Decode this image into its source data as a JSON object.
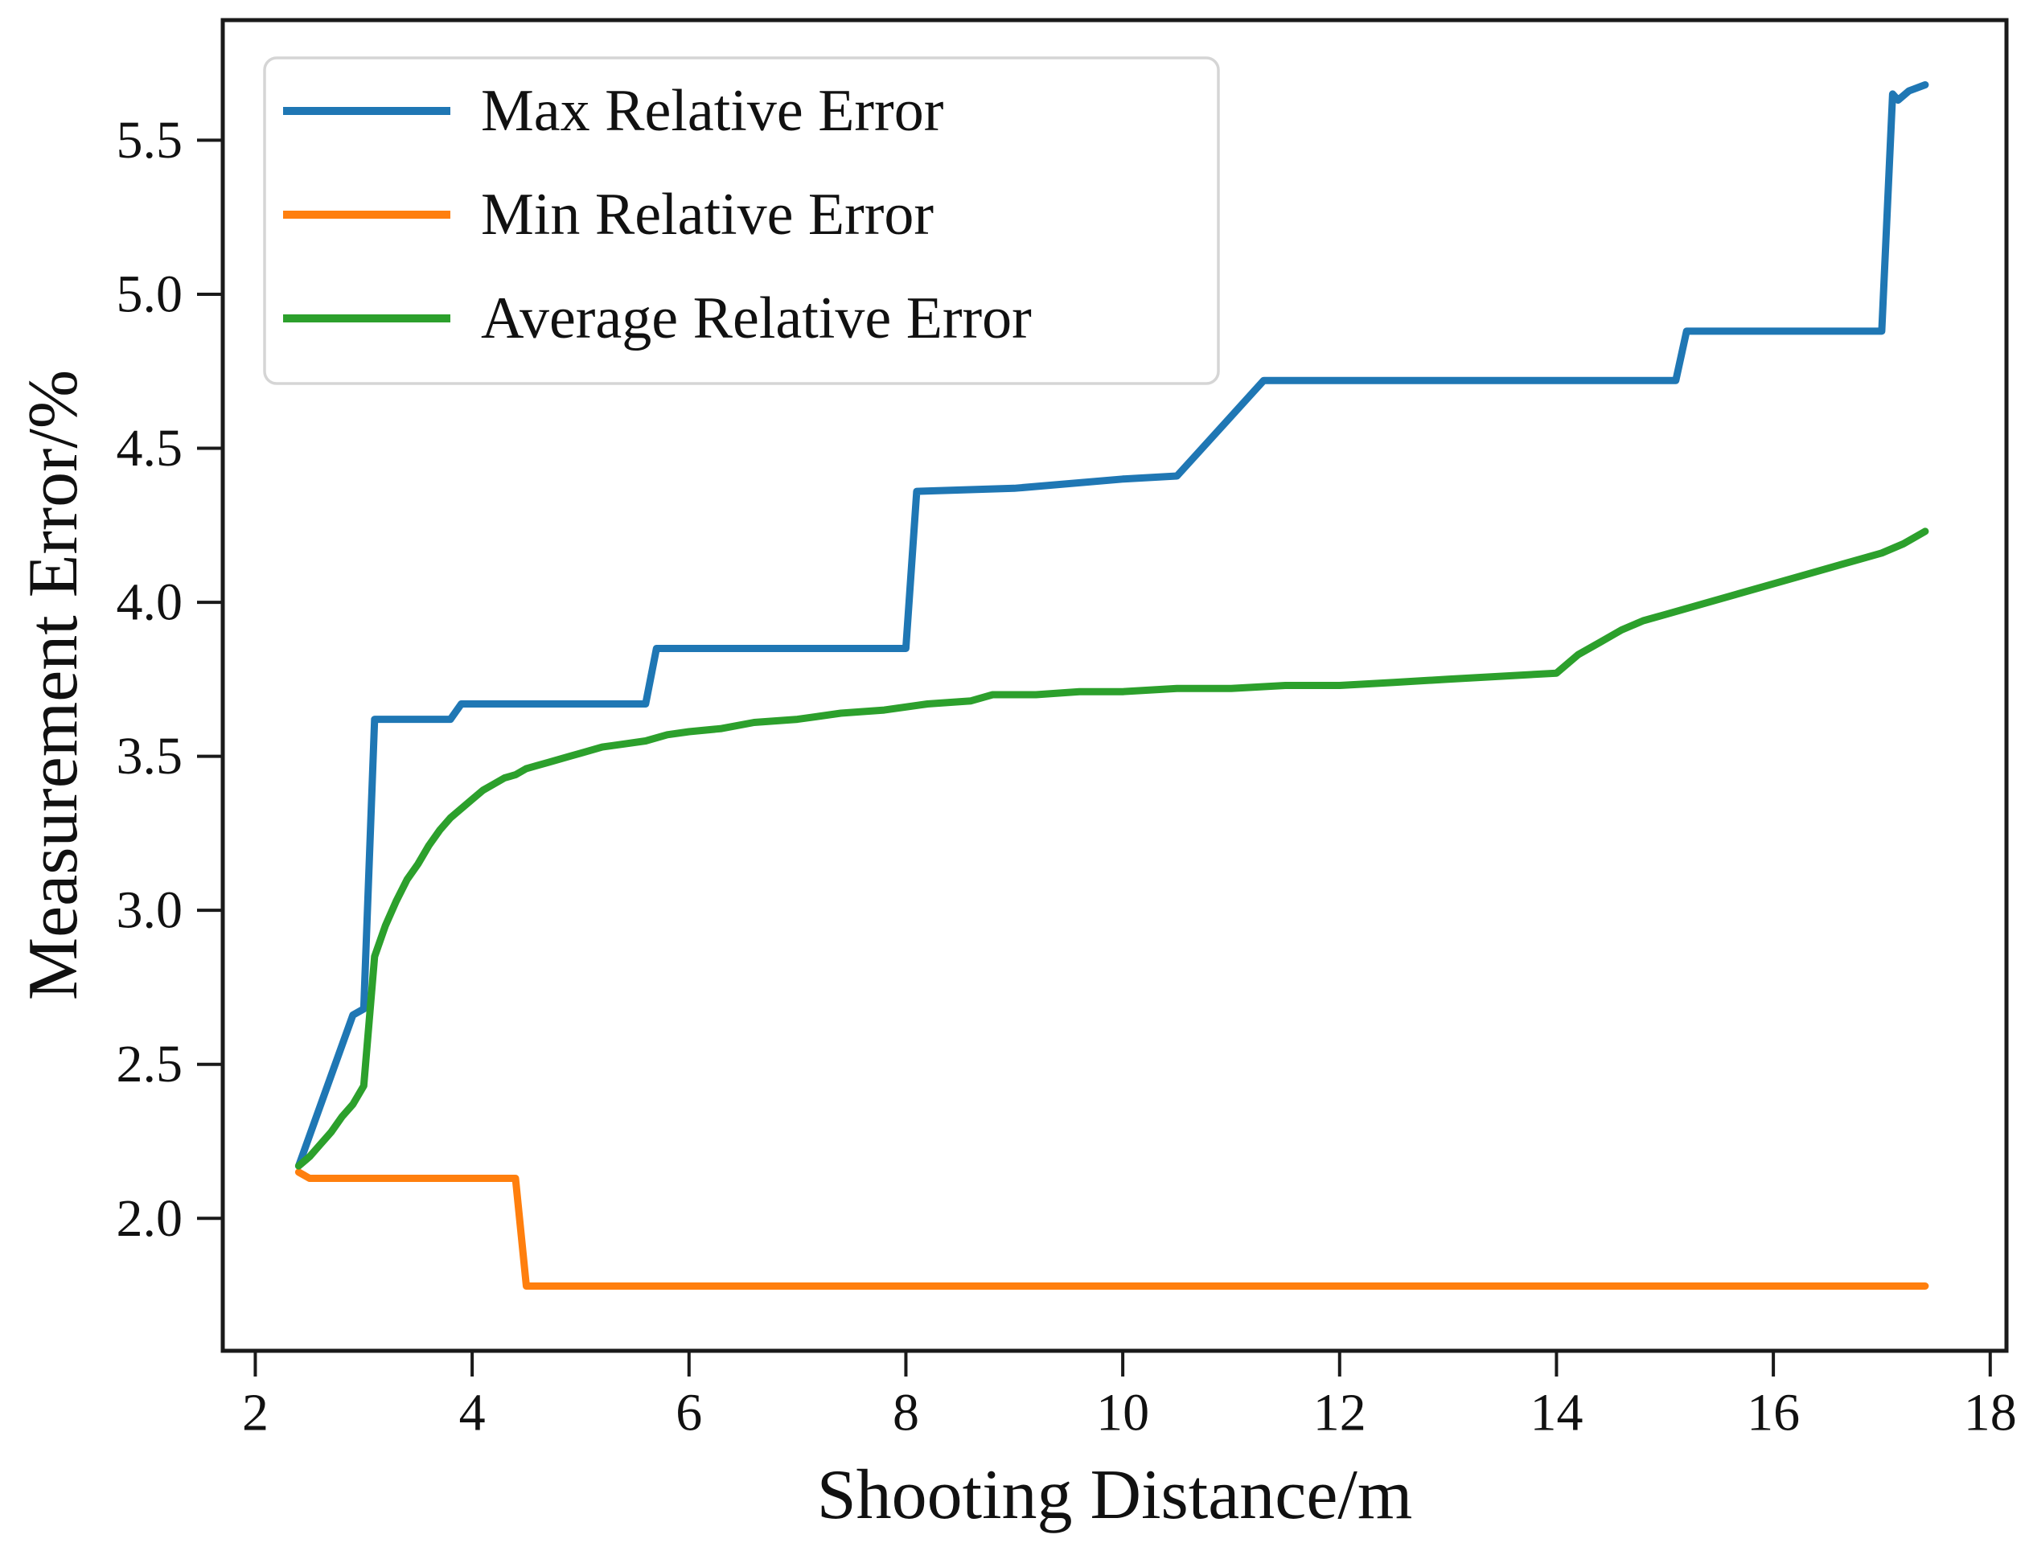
{
  "figure": {
    "xlabel": "Shooting Distance/m",
    "ylabel": "Measurement Error/%"
  },
  "legend": {
    "position": "upper left",
    "items": [
      {
        "label": "Max Relative Error",
        "color": "#1f77b4"
      },
      {
        "label": "Min Relative Error",
        "color": "#ff7f0e"
      },
      {
        "label": "Average Relative Error",
        "color": "#2ca02c"
      }
    ]
  },
  "chart_data": {
    "type": "line",
    "title": "",
    "xlabel": "Shooting Distance/m",
    "ylabel": "Measurement Error/%",
    "xlim": [
      1.7,
      18.15
    ],
    "ylim": [
      1.57,
      5.89
    ],
    "x_ticks": [
      2,
      4,
      6,
      8,
      10,
      12,
      14,
      16,
      18
    ],
    "y_ticks": [
      2.0,
      2.5,
      3.0,
      3.5,
      4.0,
      4.5,
      5.0,
      5.5
    ],
    "grid": false,
    "legend_position": "upper left",
    "series": [
      {
        "name": "Max Relative Error",
        "color": "#1f77b4",
        "points": [
          [
            2.4,
            2.17
          ],
          [
            2.9,
            2.66
          ],
          [
            3.0,
            2.68
          ],
          [
            3.1,
            3.62
          ],
          [
            3.8,
            3.62
          ],
          [
            3.9,
            3.67
          ],
          [
            5.6,
            3.67
          ],
          [
            5.7,
            3.85
          ],
          [
            8.0,
            3.85
          ],
          [
            8.1,
            4.36
          ],
          [
            9.0,
            4.37
          ],
          [
            10.0,
            4.4
          ],
          [
            10.5,
            4.41
          ],
          [
            11.3,
            4.72
          ],
          [
            15.1,
            4.72
          ],
          [
            15.2,
            4.88
          ],
          [
            17.0,
            4.88
          ],
          [
            17.1,
            5.65
          ],
          [
            17.15,
            5.63
          ],
          [
            17.25,
            5.66
          ],
          [
            17.4,
            5.68
          ]
        ]
      },
      {
        "name": "Min Relative Error",
        "color": "#ff7f0e",
        "points": [
          [
            2.4,
            2.15
          ],
          [
            2.5,
            2.13
          ],
          [
            4.4,
            2.13
          ],
          [
            4.5,
            1.78
          ],
          [
            17.4,
            1.78
          ]
        ]
      },
      {
        "name": "Average Relative Error",
        "color": "#2ca02c",
        "points": [
          [
            2.4,
            2.17
          ],
          [
            2.5,
            2.2
          ],
          [
            2.6,
            2.24
          ],
          [
            2.7,
            2.28
          ],
          [
            2.8,
            2.33
          ],
          [
            2.9,
            2.37
          ],
          [
            3.0,
            2.43
          ],
          [
            3.1,
            2.85
          ],
          [
            3.2,
            2.95
          ],
          [
            3.3,
            3.03
          ],
          [
            3.4,
            3.1
          ],
          [
            3.5,
            3.15
          ],
          [
            3.6,
            3.21
          ],
          [
            3.7,
            3.26
          ],
          [
            3.8,
            3.3
          ],
          [
            3.9,
            3.33
          ],
          [
            4.0,
            3.36
          ],
          [
            4.1,
            3.39
          ],
          [
            4.2,
            3.41
          ],
          [
            4.3,
            3.43
          ],
          [
            4.4,
            3.44
          ],
          [
            4.5,
            3.46
          ],
          [
            4.6,
            3.47
          ],
          [
            4.7,
            3.48
          ],
          [
            4.8,
            3.49
          ],
          [
            4.9,
            3.5
          ],
          [
            5.0,
            3.51
          ],
          [
            5.2,
            3.53
          ],
          [
            5.4,
            3.54
          ],
          [
            5.6,
            3.55
          ],
          [
            5.8,
            3.57
          ],
          [
            6.0,
            3.58
          ],
          [
            6.3,
            3.59
          ],
          [
            6.6,
            3.61
          ],
          [
            7.0,
            3.62
          ],
          [
            7.4,
            3.64
          ],
          [
            7.8,
            3.65
          ],
          [
            8.2,
            3.67
          ],
          [
            8.6,
            3.68
          ],
          [
            8.8,
            3.7
          ],
          [
            9.2,
            3.7
          ],
          [
            9.6,
            3.71
          ],
          [
            10.0,
            3.71
          ],
          [
            10.5,
            3.72
          ],
          [
            11.0,
            3.72
          ],
          [
            11.5,
            3.73
          ],
          [
            12.0,
            3.73
          ],
          [
            12.5,
            3.74
          ],
          [
            13.0,
            3.75
          ],
          [
            13.5,
            3.76
          ],
          [
            14.0,
            3.77
          ],
          [
            14.2,
            3.83
          ],
          [
            14.4,
            3.87
          ],
          [
            14.6,
            3.91
          ],
          [
            14.8,
            3.94
          ],
          [
            15.0,
            3.96
          ],
          [
            15.3,
            3.99
          ],
          [
            15.6,
            4.02
          ],
          [
            15.9,
            4.05
          ],
          [
            16.2,
            4.08
          ],
          [
            16.5,
            4.11
          ],
          [
            16.8,
            4.14
          ],
          [
            17.0,
            4.16
          ],
          [
            17.2,
            4.19
          ],
          [
            17.4,
            4.23
          ]
        ]
      }
    ]
  }
}
